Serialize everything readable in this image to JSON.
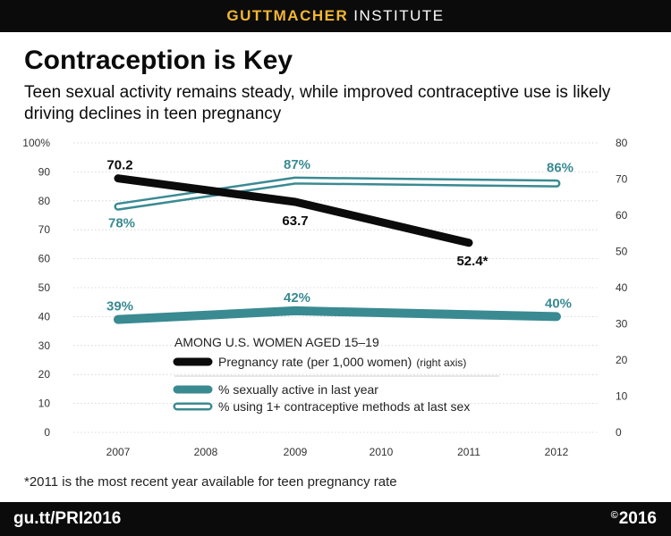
{
  "header": {
    "brand_bold": "GUTTMACHER",
    "brand_light": "INSTITUTE"
  },
  "title": "Contraception is Key",
  "subtitle": "Teen sexual activity remains steady, while improved contraceptive use is likely driving declines in teen pregnancy",
  "footnote": "*2011 is the most recent year available for teen pregnancy rate",
  "footer": {
    "url": "gu.tt/PRI2016",
    "copyright_symbol": "©",
    "copyright_year": "2016"
  },
  "colors": {
    "black": "#0b0b0b",
    "teal": "#3a8a92",
    "grid": "#cfcfcf",
    "axis_text": "#333333"
  },
  "chart_data": {
    "type": "line",
    "x": [
      2007,
      2008,
      2009,
      2010,
      2011,
      2012
    ],
    "x_tick_labels": [
      "2007",
      "2008",
      "2009",
      "2010",
      "2011",
      "2012"
    ],
    "y_left": {
      "range": [
        0,
        100
      ],
      "ticks": [
        0,
        10,
        20,
        30,
        40,
        50,
        60,
        70,
        80,
        90,
        100
      ],
      "tick_labels": [
        "0",
        "10",
        "20",
        "30",
        "40",
        "50",
        "60",
        "70",
        "80",
        "90",
        "100%"
      ]
    },
    "y_right": {
      "range": [
        0,
        80
      ],
      "ticks": [
        0,
        10,
        20,
        30,
        40,
        50,
        60,
        70,
        80
      ],
      "tick_labels": [
        "0",
        "10",
        "20",
        "30",
        "40",
        "50",
        "60",
        "70",
        "80"
      ]
    },
    "grid": true,
    "legend": {
      "heading": "AMONG U.S. WOMEN AGED 15–19",
      "placement": "center"
    },
    "series": [
      {
        "key": "pregnancy",
        "name": "Pregnancy rate (per 1,000 women)",
        "axis_note": "(right axis)",
        "axis": "right",
        "style": "thick-black",
        "points": [
          {
            "x": 2007,
            "y": 70.2,
            "label": "70.2"
          },
          {
            "x": 2009,
            "y": 63.7,
            "label": "63.7"
          },
          {
            "x": 2011,
            "y": 52.4,
            "label": "52.4*"
          }
        ]
      },
      {
        "key": "sexually_active",
        "name": "% sexually active in last year",
        "axis": "left",
        "style": "thick-teal",
        "points": [
          {
            "x": 2007,
            "y": 39,
            "label": "39%"
          },
          {
            "x": 2009,
            "y": 42,
            "label": "42%"
          },
          {
            "x": 2012,
            "y": 40,
            "label": "40%"
          }
        ]
      },
      {
        "key": "contraceptive",
        "name": "% using 1+ contraceptive methods at last sex",
        "axis": "left",
        "style": "double-teal",
        "points": [
          {
            "x": 2007,
            "y": 78,
            "label": "78%"
          },
          {
            "x": 2009,
            "y": 87,
            "label": "87%"
          },
          {
            "x": 2012,
            "y": 86,
            "label": "86%"
          }
        ]
      }
    ]
  }
}
